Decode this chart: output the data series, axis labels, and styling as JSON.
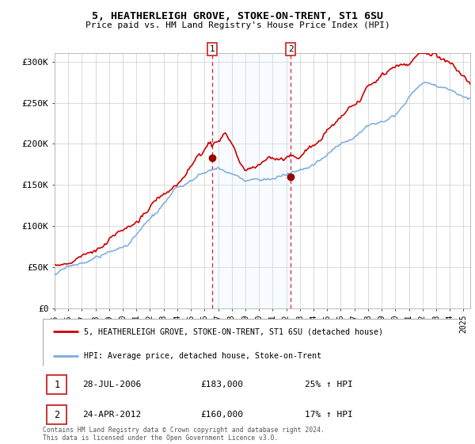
{
  "title": "5, HEATHERLEIGH GROVE, STOKE-ON-TRENT, ST1 6SU",
  "subtitle": "Price paid vs. HM Land Registry's House Price Index (HPI)",
  "house_color": "#cc0000",
  "hpi_color": "#7aaadd",
  "highlight_color": "#ddeeff",
  "grid_color": "#cccccc",
  "legend_house": "5, HEATHERLEIGH GROVE, STOKE-ON-TRENT, ST1 6SU (detached house)",
  "legend_hpi": "HPI: Average price, detached house, Stoke-on-Trent",
  "ann1_date": "28-JUL-2006",
  "ann1_price": "£183,000",
  "ann1_pct": "25% ↑ HPI",
  "ann1_x": 2006.58,
  "ann1_y": 183000,
  "ann2_date": "24-APR-2012",
  "ann2_price": "£160,000",
  "ann2_pct": "17% ↑ HPI",
  "ann2_x": 2012.33,
  "ann2_y": 160000,
  "footer": "Contains HM Land Registry data © Crown copyright and database right 2024.\nThis data is licensed under the Open Government Licence v3.0.",
  "ylim": [
    0,
    310000
  ],
  "yticks": [
    0,
    50000,
    100000,
    150000,
    200000,
    250000,
    300000
  ],
  "ytick_labels": [
    "£0",
    "£50K",
    "£100K",
    "£150K",
    "£200K",
    "£250K",
    "£300K"
  ],
  "xlim": [
    1995.0,
    2025.5
  ]
}
